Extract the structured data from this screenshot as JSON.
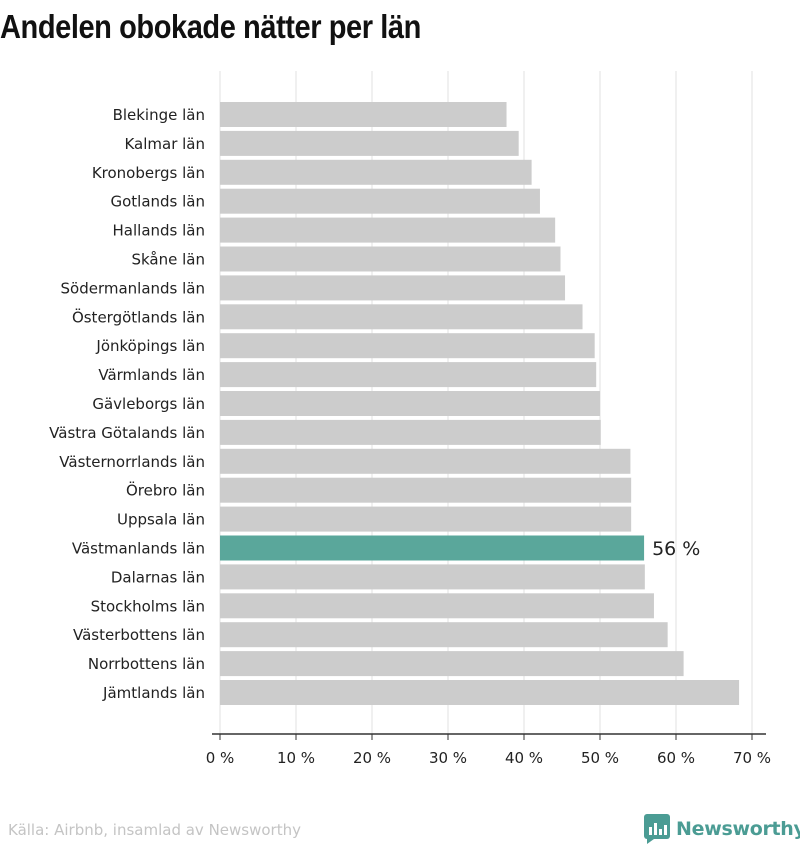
{
  "title": "Andelen obokade nätter per län",
  "source": "Källa: Airbnb, insamlad av Newsworthy",
  "brand": {
    "name": "Newsworthy",
    "color": "#4b9c94",
    "icon": "newsworthy-logo-icon"
  },
  "colors": {
    "bar": "#cccccc",
    "highlight": "#5aa79b",
    "grid": "#e0e0e0",
    "axis": "#333333",
    "text": "#222222"
  },
  "chart_data": {
    "type": "bar",
    "orientation": "horizontal",
    "categories": [
      "Blekinge län",
      "Kalmar län",
      "Kronobergs län",
      "Gotlands län",
      "Hallands län",
      "Skåne län",
      "Södermanlands län",
      "Östergötlands län",
      "Jönköpings län",
      "Värmlands län",
      "Gävleborgs län",
      "Västra Götalands län",
      "Västernorrlands län",
      "Örebro län",
      "Uppsala län",
      "Västmanlands län",
      "Dalarnas län",
      "Stockholms län",
      "Västerbottens län",
      "Norrbottens län",
      "Jämtlands län"
    ],
    "values": [
      37.7,
      39.3,
      41.0,
      42.1,
      44.1,
      44.8,
      45.4,
      47.7,
      49.3,
      49.5,
      50.0,
      50.1,
      54.0,
      54.1,
      54.1,
      55.8,
      55.9,
      57.1,
      58.9,
      61.0,
      68.3
    ],
    "highlight_index": 15,
    "highlight_label": "56 %",
    "xlim": [
      0,
      70
    ],
    "xticks": [
      "0 %",
      "10 %",
      "20 %",
      "30 %",
      "40 %",
      "50 %",
      "60 %",
      "70 %"
    ],
    "xlabel": "",
    "ylabel": "",
    "grid": true,
    "legend": "none"
  }
}
